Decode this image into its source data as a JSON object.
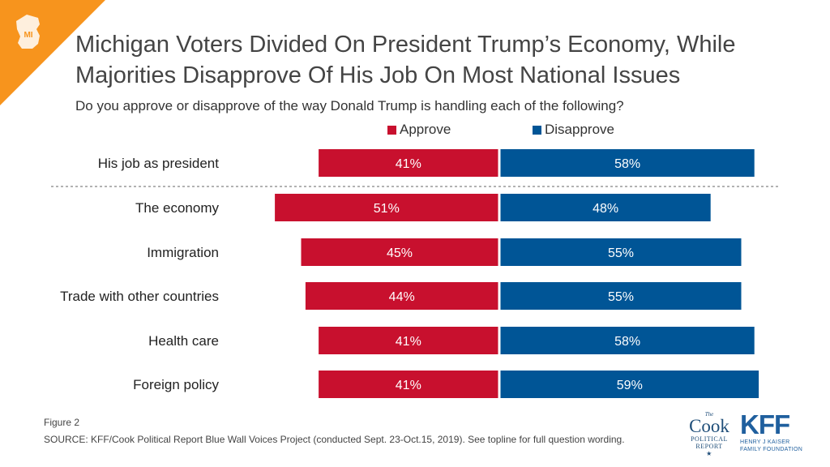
{
  "header": {
    "title_line1": "Michigan Voters Divided On President Trump’s Economy, While",
    "title_line2": "Majorities Disapprove Of His Job On Most National Issues",
    "subtitle": "Do you approve or disapprove of the way Donald Trump is handling each of the following?",
    "corner_badge": "MI"
  },
  "colors": {
    "approve": "#c8102e",
    "disapprove": "#005596",
    "corner": "#f7941d"
  },
  "chart_data": {
    "type": "bar",
    "orientation": "horizontal-diverging",
    "categories": [
      "His job as president",
      "The economy",
      "Immigration",
      "Trade with other countries",
      "Health care",
      "Foreign policy"
    ],
    "series": [
      {
        "name": "Approve",
        "values": [
          41,
          51,
          45,
          44,
          41,
          41
        ],
        "labels": [
          "41%",
          "51%",
          "45%",
          "44%",
          "41%",
          "41%"
        ]
      },
      {
        "name": "Disapprove",
        "values": [
          58,
          48,
          55,
          55,
          58,
          59
        ],
        "labels": [
          "58%",
          "48%",
          "55%",
          "55%",
          "58%",
          "59%"
        ]
      }
    ],
    "legend_placement": "top",
    "grid": false
  },
  "footer": {
    "figure": "Figure 2",
    "source": "SOURCE: KFF/Cook Political Report Blue Wall Voices Project (conducted Sept. 23-Oct.15, 2019). See topline for full question wording."
  },
  "logos": {
    "cook_the": "The",
    "cook_name": "Cook",
    "cook_line1": "POLITICAL",
    "cook_line2": "REPORT",
    "kff_name": "KFF",
    "kff_line1": "HENRY J KAISER",
    "kff_line2": "FAMILY FOUNDATION"
  }
}
